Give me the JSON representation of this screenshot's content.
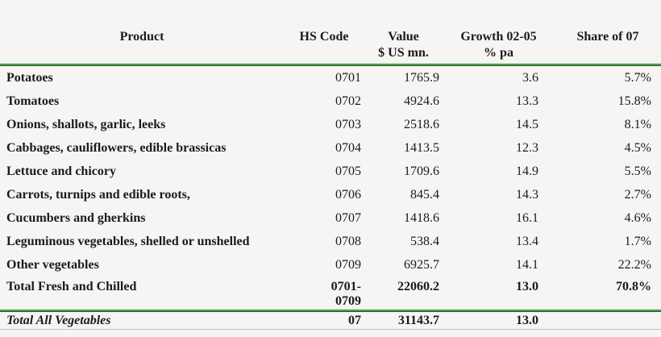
{
  "page": {
    "background": "#f6f5f3",
    "accent_green": "#44a244",
    "text_color": "#1b1b1b"
  },
  "table": {
    "columns": [
      {
        "line1": "Product",
        "line2": ""
      },
      {
        "line1": "HS Code",
        "line2": ""
      },
      {
        "line1": "Value",
        "line2": "$ US mn."
      },
      {
        "line1": "Growth 02-05",
        "line2": "% pa"
      },
      {
        "line1": "Share of 07",
        "line2": ""
      }
    ],
    "rows": [
      {
        "product": "Potatoes",
        "hs_code": "0701",
        "value": "1765.9",
        "growth": "3.6",
        "share": "5.7%"
      },
      {
        "product": "Tomatoes",
        "hs_code": "0702",
        "value": "4924.6",
        "growth": "13.3",
        "share": "15.8%"
      },
      {
        "product": "Onions, shallots, garlic, leeks",
        "hs_code": "0703",
        "value": "2518.6",
        "growth": "14.5",
        "share": "8.1%"
      },
      {
        "product": "Cabbages, cauliflowers, edible brassicas",
        "hs_code": "0704",
        "value": "1413.5",
        "growth": "12.3",
        "share": "4.5%"
      },
      {
        "product": "Lettuce and chicory",
        "hs_code": "0705",
        "value": "1709.6",
        "growth": "14.9",
        "share": "5.5%"
      },
      {
        "product": "Carrots, turnips and edible roots,",
        "hs_code": "0706",
        "value": "845.4",
        "growth": "14.3",
        "share": "2.7%"
      },
      {
        "product": "Cucumbers and gherkins",
        "hs_code": "0707",
        "value": "1418.6",
        "growth": "16.1",
        "share": "4.6%"
      },
      {
        "product": "Leguminous vegetables, shelled or unshelled",
        "hs_code": "0708",
        "value": "538.4",
        "growth": "13.4",
        "share": "1.7%"
      },
      {
        "product": "Other vegetables",
        "hs_code": "0709",
        "value": "6925.7",
        "growth": "14.1",
        "share": "22.2%"
      },
      {
        "product": "Total Fresh and Chilled",
        "hs_code": "0701-\n0709",
        "value": "22060.2",
        "growth": "13.0",
        "share": "70.8%"
      },
      {
        "product": "Total All Vegetables",
        "hs_code": "07",
        "value": "31143.7",
        "growth": "13.0",
        "share": ""
      }
    ]
  }
}
